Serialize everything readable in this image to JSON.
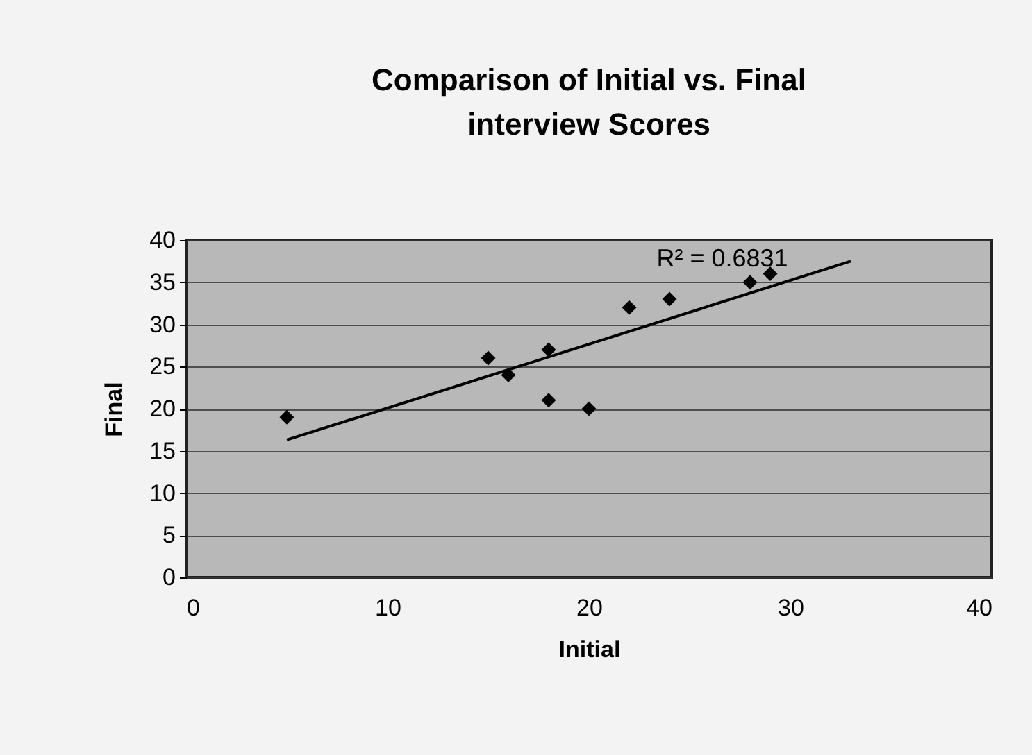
{
  "chart_data": {
    "type": "scatter",
    "title": [
      "Comparison of Initial vs. Final",
      "interview Scores"
    ],
    "xlabel": "Initial",
    "ylabel": "Final",
    "x": [
      5,
      15,
      16,
      18,
      18,
      20,
      22,
      24,
      28,
      29
    ],
    "series": [
      {
        "color": "#000000",
        "marker": "diamond",
        "values": [
          19,
          26,
          24,
          27,
          21,
          20,
          32,
          33,
          35,
          36
        ]
      },
      {
        "type": "line",
        "color": "#000000",
        "marker": "none",
        "line_style": "solid",
        "x": [
          5,
          33
        ],
        "values": [
          16.3,
          37.5
        ]
      }
    ],
    "annotations": [
      "R² = 0.6831"
    ],
    "xlim": [
      0,
      40
    ],
    "xticks": [
      0,
      10,
      20,
      30,
      40
    ],
    "ylim": [
      0,
      40
    ],
    "yticks": [
      0,
      5,
      10,
      15,
      20,
      25,
      30,
      35,
      40
    ],
    "grid": "y"
  }
}
